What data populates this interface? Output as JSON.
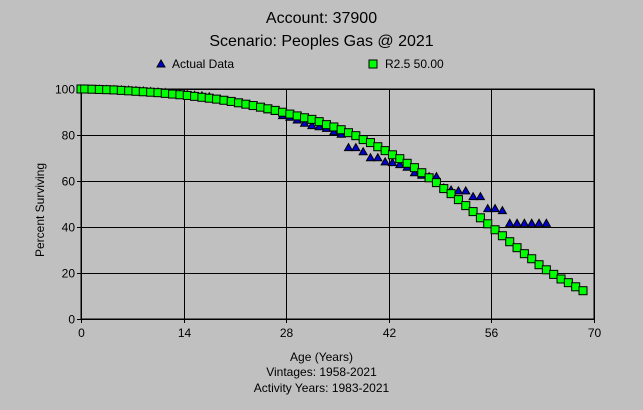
{
  "chart_data": {
    "type": "scatter",
    "title": "Account: 37900",
    "subtitle": "Scenario: Peoples Gas @ 2021",
    "xlabel": "Age (Years)",
    "ylabel": "Percent Surviving",
    "notes": [
      "Vintages: 1958-2021",
      "Activity Years: 1983-2021"
    ],
    "xlim": [
      0,
      70
    ],
    "ylim": [
      0,
      100
    ],
    "xticks": [
      0,
      14,
      28,
      42,
      56,
      70
    ],
    "yticks": [
      0,
      20,
      40,
      60,
      80,
      100
    ],
    "grid": true,
    "legend_position": "top",
    "series": [
      {
        "name": "Actual Data",
        "marker": "triangle",
        "color": "#0000cc",
        "x": [
          0,
          0.5,
          1.5,
          2.5,
          3.5,
          4.5,
          5.5,
          6.5,
          7.5,
          8.5,
          9.5,
          10.5,
          11.5,
          12.5,
          13.5,
          14.5,
          15.5,
          16.5,
          17.5,
          18.5,
          19.5,
          20.5,
          21.5,
          22.5,
          23.5,
          24.5,
          25.5,
          26.5,
          27.5,
          28.5,
          29.5,
          30.5,
          31.5,
          32.5,
          33.5,
          34.5,
          35.5,
          36.5,
          37.5,
          38.5,
          39.5,
          40.5,
          41.5,
          42.5,
          43.5,
          44.5,
          45.5,
          46.5,
          47.5,
          48.5,
          49.5,
          50.5,
          51.5,
          52.5,
          53.5,
          54.5,
          55.5,
          56.5,
          57.5,
          58.5,
          59.5,
          60.5,
          61.5,
          62.5,
          63.5
        ],
        "y": [
          100,
          100,
          99.9,
          99.9,
          99.8,
          99.7,
          99.6,
          99.5,
          99.3,
          99.1,
          98.9,
          98.7,
          98.5,
          98.2,
          97.9,
          97.6,
          97.3,
          97.0,
          96.6,
          95.5,
          95.0,
          94.4,
          93.8,
          93.2,
          92.5,
          91.8,
          91.0,
          90.2,
          88.4,
          87.7,
          86.5,
          85.1,
          84.1,
          83.6,
          82.9,
          81.4,
          80.3,
          74.5,
          74.5,
          72.7,
          70.1,
          70.1,
          68.3,
          68.0,
          67.1,
          66.0,
          63.6,
          62.5,
          61.9,
          61.9,
          57.0,
          56.1,
          55.7,
          55.7,
          53.2,
          53.2,
          48.0,
          48.0,
          47.1,
          41.6,
          41.6,
          41.6,
          41.6,
          41.6,
          41.6
        ]
      },
      {
        "name": "R2.5 50.00",
        "marker": "square",
        "color": "#00ff00",
        "x": [
          0,
          0.5,
          1.5,
          2.5,
          3.5,
          4.5,
          5.5,
          6.5,
          7.5,
          8.5,
          9.5,
          10.5,
          11.5,
          12.5,
          13.5,
          14.5,
          15.5,
          16.5,
          17.5,
          18.5,
          19.5,
          20.5,
          21.5,
          22.5,
          23.5,
          24.5,
          25.5,
          26.5,
          27.5,
          28.5,
          29.5,
          30.5,
          31.5,
          32.5,
          33.5,
          34.5,
          35.5,
          36.5,
          37.5,
          38.5,
          39.5,
          40.5,
          41.5,
          42.5,
          43.5,
          44.5,
          45.5,
          46.5,
          47.5,
          48.5,
          49.5,
          50.5,
          51.5,
          52.5,
          53.5,
          54.5,
          55.5,
          56.5,
          57.5,
          58.5,
          59.5,
          60.5,
          61.5,
          62.5,
          63.5,
          64.5,
          65.5,
          66.5,
          67.5,
          68.5
        ],
        "y": [
          100,
          100,
          99.9,
          99.8,
          99.7,
          99.6,
          99.4,
          99.2,
          99.0,
          98.8,
          98.6,
          98.4,
          98.1,
          97.8,
          97.5,
          97.2,
          96.8,
          96.4,
          96.0,
          95.6,
          95.1,
          94.6,
          94.0,
          93.4,
          92.8,
          92.1,
          91.4,
          90.7,
          89.9,
          89.1,
          88.3,
          87.5,
          86.8,
          85.8,
          84.5,
          83.5,
          82.3,
          81.0,
          79.7,
          78.0,
          76.7,
          74.9,
          73.2,
          71.4,
          69.7,
          67.7,
          65.8,
          63.6,
          61.4,
          59.3,
          56.7,
          54.5,
          51.9,
          49.3,
          46.7,
          44.0,
          41.4,
          38.8,
          36.2,
          33.6,
          31.0,
          28.4,
          26.2,
          23.6,
          21.4,
          19.4,
          17.4,
          15.8,
          14.0,
          12.3
        ]
      }
    ]
  }
}
